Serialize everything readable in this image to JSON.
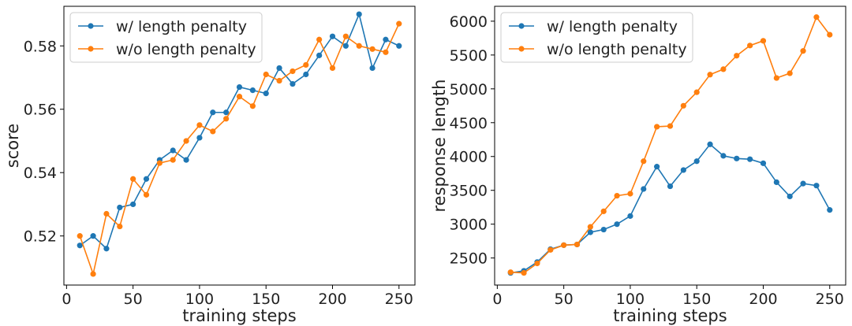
{
  "colors": {
    "w_penalty": "#1f77b4",
    "wo_penalty": "#ff7f0e"
  },
  "chart_data": [
    {
      "type": "line",
      "title": "",
      "xlabel": "training steps",
      "ylabel": "score",
      "xlim": [
        -2,
        262
      ],
      "ylim": [
        0.5045,
        0.5925
      ],
      "xticks": [
        0,
        50,
        100,
        150,
        200,
        250
      ],
      "yticks": [
        0.52,
        0.54,
        0.56,
        0.58
      ],
      "xtick_labels": [
        "0",
        "50",
        "100",
        "150",
        "200",
        "250"
      ],
      "ytick_labels": [
        "0.52",
        "0.54",
        "0.56",
        "0.58"
      ],
      "legend": "upper-left",
      "grid": false,
      "x": [
        10,
        20,
        30,
        40,
        50,
        60,
        70,
        80,
        90,
        100,
        110,
        120,
        130,
        140,
        150,
        160,
        170,
        180,
        190,
        200,
        210,
        220,
        230,
        240,
        250
      ],
      "series": [
        {
          "name": "w/ length penalty",
          "color_key": "w_penalty",
          "values": [
            0.517,
            0.52,
            0.516,
            0.529,
            0.53,
            0.538,
            0.544,
            0.547,
            0.544,
            0.551,
            0.559,
            0.559,
            0.567,
            0.566,
            0.565,
            0.573,
            0.568,
            0.571,
            0.577,
            0.583,
            0.58,
            0.59,
            0.573,
            0.582,
            0.58
          ]
        },
        {
          "name": "w/o length penalty",
          "color_key": "wo_penalty",
          "values": [
            0.52,
            0.508,
            0.527,
            0.523,
            0.538,
            0.533,
            0.543,
            0.544,
            0.55,
            0.555,
            0.553,
            0.557,
            0.564,
            0.561,
            0.571,
            0.569,
            0.572,
            0.574,
            0.582,
            0.573,
            0.583,
            0.58,
            0.579,
            0.578,
            0.587
          ]
        }
      ]
    },
    {
      "type": "line",
      "title": "",
      "xlabel": "training steps",
      "ylabel": "response length",
      "xlim": [
        -2,
        262
      ],
      "ylim": [
        2100,
        6220
      ],
      "xticks": [
        0,
        50,
        100,
        150,
        200,
        250
      ],
      "yticks": [
        2500,
        3000,
        3500,
        4000,
        4500,
        5000,
        5500,
        6000
      ],
      "xtick_labels": [
        "0",
        "50",
        "100",
        "150",
        "200",
        "250"
      ],
      "ytick_labels": [
        "2500",
        "3000",
        "3500",
        "4000",
        "4500",
        "5000",
        "5500",
        "6000"
      ],
      "legend": "upper-left",
      "grid": false,
      "x": [
        10,
        20,
        30,
        40,
        50,
        60,
        70,
        80,
        90,
        100,
        110,
        120,
        130,
        140,
        150,
        160,
        170,
        180,
        190,
        200,
        210,
        220,
        230,
        240,
        250
      ],
      "series": [
        {
          "name": "w/ length penalty",
          "color_key": "w_penalty",
          "values": [
            2280,
            2310,
            2440,
            2630,
            2690,
            2700,
            2880,
            2920,
            3000,
            3120,
            3520,
            3850,
            3560,
            3800,
            3930,
            4180,
            4010,
            3970,
            3960,
            3900,
            3620,
            3410,
            3600,
            3570,
            3210
          ]
        },
        {
          "name": "w/o length penalty",
          "color_key": "wo_penalty",
          "values": [
            2290,
            2280,
            2420,
            2620,
            2690,
            2700,
            2960,
            3190,
            3420,
            3450,
            3930,
            4440,
            4450,
            4750,
            4950,
            5210,
            5290,
            5490,
            5640,
            5710,
            5160,
            5230,
            5560,
            6060,
            5800
          ]
        }
      ]
    }
  ]
}
